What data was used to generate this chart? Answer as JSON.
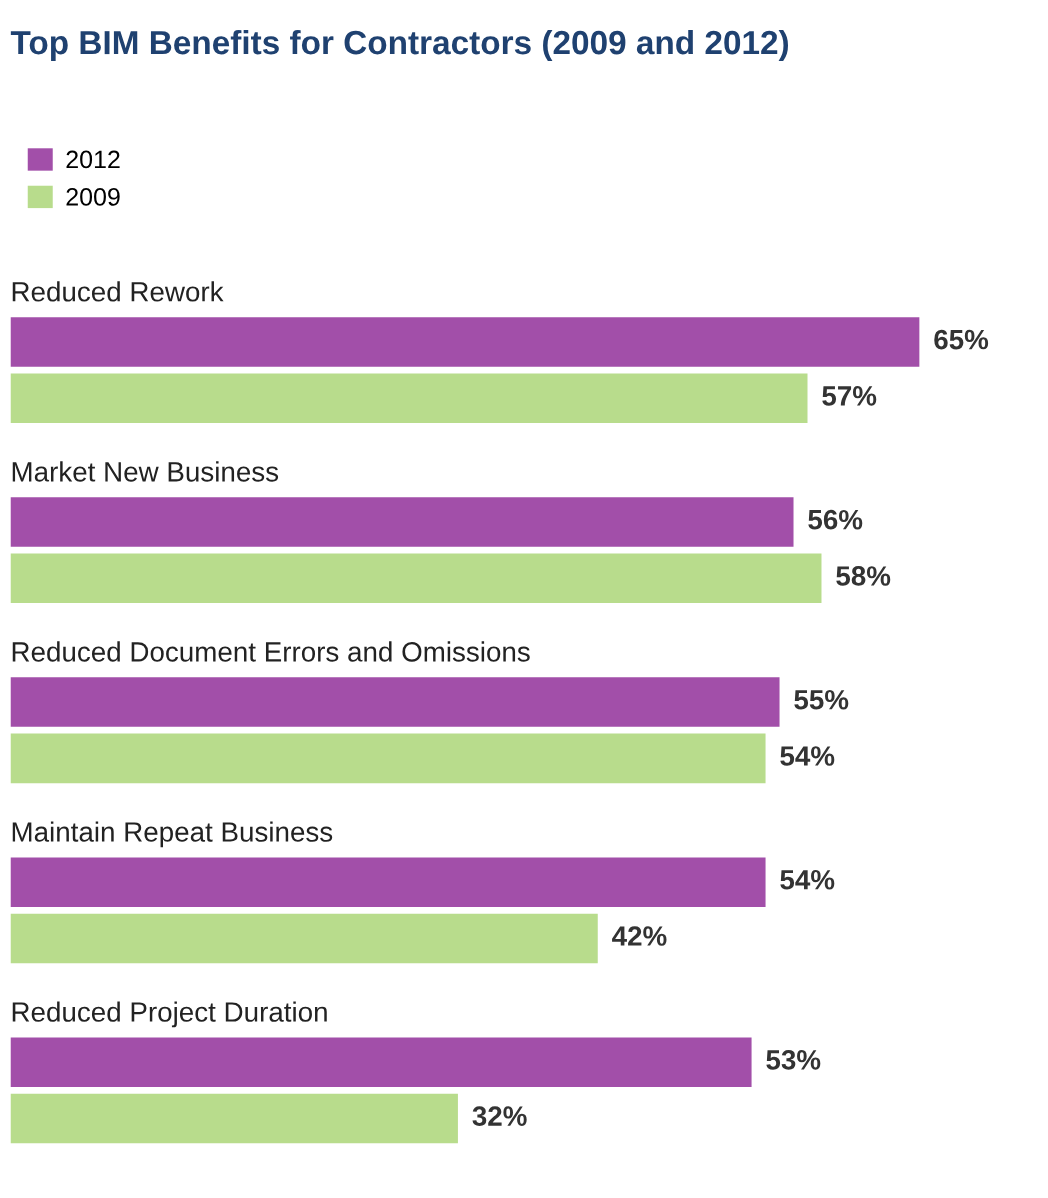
{
  "chart_data": {
    "type": "bar",
    "orientation": "horizontal",
    "title": "Top BIM Benefits for Contractors (2009 and 2012)",
    "categories": [
      "Reduced Rework",
      "Market New Business",
      "Reduced Document Errors and Omissions",
      "Maintain Repeat Business",
      "Reduced Project Duration"
    ],
    "series": [
      {
        "name": "2012",
        "color": "#a24fa9",
        "values": [
          65,
          56,
          55,
          54,
          53
        ],
        "value_labels": [
          "65%",
          "56%",
          "55%",
          "54%",
          "53%"
        ]
      },
      {
        "name": "2009",
        "color": "#b8dc8c",
        "values": [
          57,
          58,
          54,
          42,
          32
        ],
        "value_labels": [
          "57%",
          "58%",
          "54%",
          "42%",
          "32%"
        ]
      }
    ],
    "legend": "top left"
  }
}
